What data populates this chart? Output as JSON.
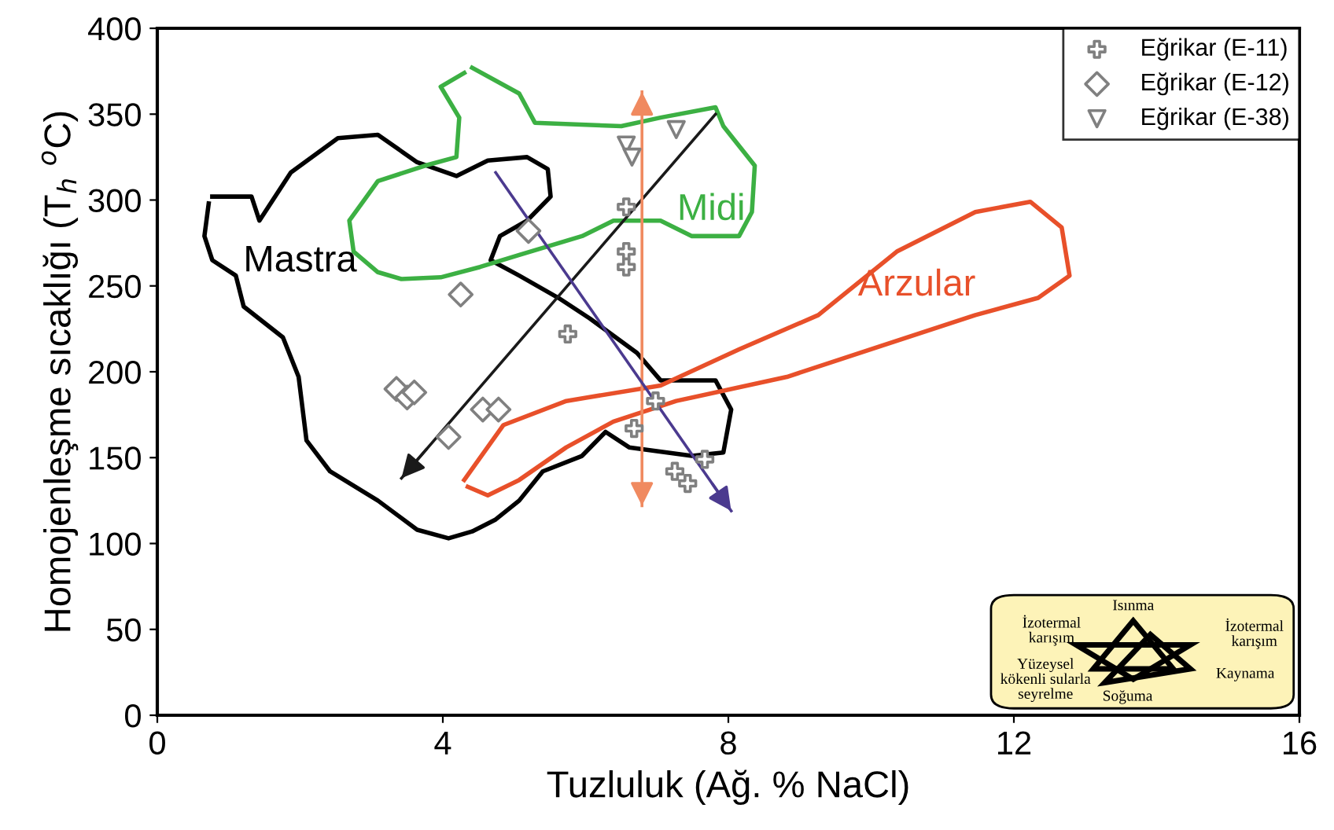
{
  "chart_data": {
    "type": "scatter",
    "xlabel": "Tuzluluk (Ağ. % NaCl)",
    "ylabel": "Homojenleşme sıcaklığı (T$_{h}$ $^{o}$C)",
    "xlim": [
      0,
      16
    ],
    "xticks": [
      0,
      4,
      8,
      12,
      16
    ],
    "ylim": [
      0,
      400
    ],
    "yticks": [
      0,
      50,
      100,
      150,
      200,
      250,
      300,
      350,
      400
    ],
    "grid": false,
    "legend": "top right",
    "series": [
      {
        "name": "Eğrikar (E-11)",
        "marker": "cross",
        "color": "#808080",
        "x": [
          6.57,
          6.57,
          6.57,
          5.75,
          6.98,
          6.68,
          7.67,
          7.25,
          7.43
        ],
        "values": [
          296,
          270,
          261,
          222,
          183,
          167,
          149,
          142,
          135
        ]
      },
      {
        "name": "Eğrikar (E-12)",
        "marker": "diamond",
        "color": "#808080",
        "x": [
          5.2,
          4.25,
          3.35,
          3.5,
          3.6,
          4.56,
          4.78,
          4.08
        ],
        "values": [
          282,
          245,
          190,
          185,
          188,
          178,
          178,
          162
        ]
      },
      {
        "name": "Eğrikar (E-38)",
        "marker": "triangle",
        "color": "#808080",
        "x": [
          6.57,
          6.65,
          7.27
        ],
        "values": [
          332,
          325,
          341
        ]
      },
      {
        "name": "Mastra",
        "type": "line",
        "color": "#000000",
        "x": [
          0.77,
          1.32,
          1.43,
          1.87,
          2.53,
          3.09,
          3.64,
          4.19,
          4.63,
          5.18,
          5.47,
          5.51,
          5.18,
          4.8,
          4.67,
          5.07,
          5.62,
          6.06,
          6.72,
          7.05,
          7.82,
          8.04,
          7.93,
          7.49,
          6.61,
          6.28,
          5.95,
          5.4,
          5.07,
          4.74,
          4.41,
          4.08,
          3.64,
          3.09,
          2.42,
          2.09,
          1.98,
          1.76,
          1.21,
          1.1,
          0.77,
          0.66,
          0.72
        ],
        "values": [
          302,
          302,
          288,
          316,
          336,
          338,
          322,
          314,
          323,
          325,
          318,
          302,
          288,
          279,
          265,
          256,
          243,
          231,
          211,
          195,
          195,
          178,
          153,
          151,
          156,
          165,
          151,
          142,
          125,
          114,
          107,
          103,
          108,
          125,
          142,
          160,
          197,
          220,
          238,
          256,
          265,
          279,
          298
        ]
      },
      {
        "name": "Midi",
        "type": "line",
        "color": "#3cb043",
        "x": [
          4.41,
          5.07,
          5.29,
          6.5,
          7.05,
          7.82,
          7.93,
          8.37,
          8.33,
          8.15,
          7.49,
          7.05,
          6.39,
          5.95,
          5.07,
          4.52,
          3.97,
          3.42,
          3.09,
          2.75,
          2.69,
          3.09,
          3.75,
          4.19,
          4.23,
          3.97,
          4.3
        ],
        "values": [
          377,
          362,
          345,
          343,
          348,
          354,
          343,
          320,
          293,
          279,
          279,
          288,
          288,
          279,
          268,
          261,
          255,
          254,
          258,
          270,
          288,
          311,
          320,
          325,
          348,
          366,
          374
        ]
      },
      {
        "name": "Arzular",
        "type": "line",
        "color": "#e8502a",
        "x": [
          4.3,
          4.85,
          5.73,
          7.05,
          8.15,
          9.26,
          10.36,
          11.46,
          12.23,
          12.67,
          12.78,
          12.34,
          11.46,
          10.14,
          8.82,
          7.27,
          6.39,
          5.73,
          5.07,
          4.63,
          4.35
        ],
        "values": [
          137,
          169,
          183,
          192,
          213,
          233,
          270,
          293,
          299,
          284,
          256,
          243,
          233,
          215,
          197,
          183,
          171,
          156,
          137,
          128,
          133
        ]
      },
      {
        "type": "line",
        "color": "#1a1a1a",
        "x": [
          7.82,
          3.42
        ],
        "values": [
          350,
          138
        ]
      },
      {
        "type": "line",
        "color": "#f08a60",
        "x": [
          6.79,
          6.79,
          6.79
        ],
        "values": [
          363,
          242,
          122
        ]
      },
      {
        "type": "line",
        "color": "#4b3a8f",
        "x": [
          4.74,
          8.04
        ],
        "values": [
          316,
          119
        ]
      }
    ],
    "annotations": [
      "Isınma",
      "İzotermal\nkarışım",
      "İzotermal\nkarışım",
      "Kaynama",
      "Soğuma",
      "Yüzeysel\nkökenli sularla\nseyrelme"
    ]
  }
}
